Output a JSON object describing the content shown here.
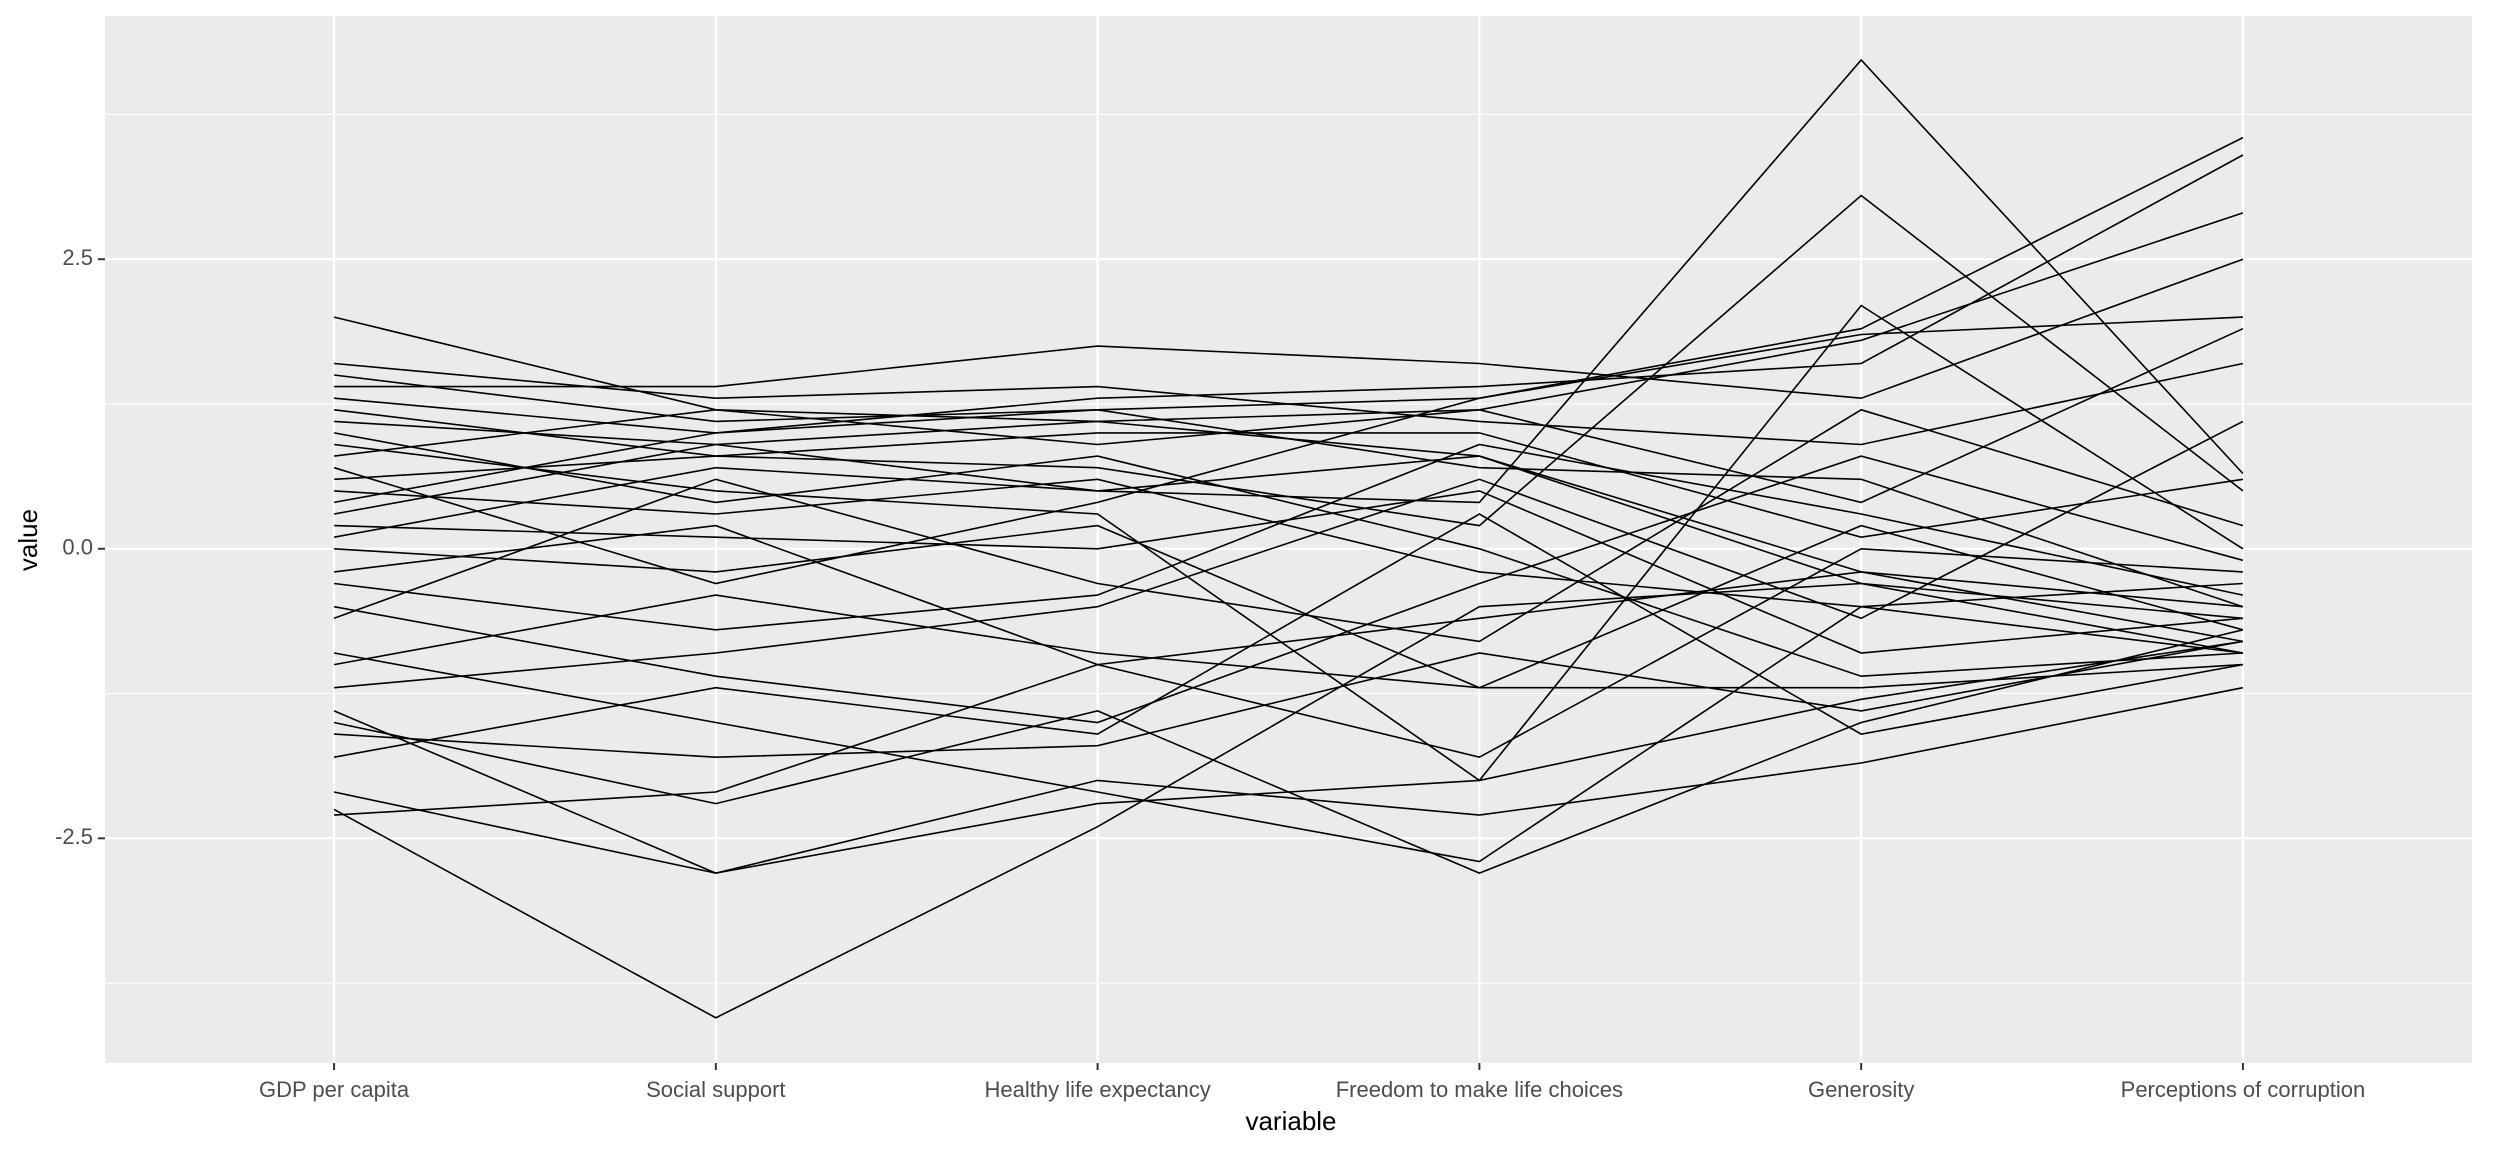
{
  "chart_data": {
    "type": "parallel",
    "x_label": "variable",
    "y_label": "value",
    "categories": [
      "GDP per capita",
      "Social support",
      "Healthy life expectancy",
      "Freedom to make life choices",
      "Generosity",
      "Perceptions of corruption"
    ],
    "ylim": [
      -4.44,
      4.6
    ],
    "yticks": [
      -2.5,
      {
        "value": 0,
        "label": "0.0"
      },
      2.5
    ],
    "minor_yticks": [
      -3.75,
      -1.25,
      1.25,
      3.75
    ],
    "grid": true,
    "color": "#000000",
    "series": [
      {
        "values": [
          -2.25,
          -4.05,
          -2.4,
          -0.5,
          -0.3,
          -0.6
        ]
      },
      {
        "values": [
          0.3,
          0.9,
          0.5,
          0.4,
          4.22,
          0.65
        ]
      },
      {
        "values": [
          0.6,
          0.8,
          0.7,
          0.2,
          3.05,
          0.5
        ]
      },
      {
        "values": [
          1.5,
          1.1,
          1.2,
          1.3,
          1.9,
          3.55
        ]
      },
      {
        "values": [
          1.3,
          1.0,
          1.3,
          1.4,
          1.6,
          3.4
        ]
      },
      {
        "values": [
          2.0,
          1.2,
          1.1,
          1.2,
          1.8,
          2.9
        ]
      },
      {
        "values": [
          1.4,
          1.4,
          1.75,
          1.6,
          1.3,
          2.5
        ]
      },
      {
        "values": [
          -2.1,
          -2.8,
          -2.2,
          -2.0,
          -1.3,
          -0.8
        ]
      },
      {
        "values": [
          -1.5,
          -2.2,
          -1.4,
          -2.8,
          -1.5,
          -0.7
        ]
      },
      {
        "values": [
          -1.4,
          -2.8,
          -2.0,
          -2.3,
          -1.85,
          -1.2
        ]
      },
      {
        "values": [
          -0.9,
          -1.5,
          -2.1,
          -2.7,
          -0.5,
          -0.9
        ]
      },
      {
        "values": [
          0.9,
          0.5,
          0.3,
          -2.0,
          2.1,
          0.0
        ]
      },
      {
        "values": [
          -2.3,
          -2.1,
          -1.0,
          -0.6,
          -0.2,
          -0.5
        ]
      },
      {
        "values": [
          0.2,
          0.1,
          0.0,
          0.5,
          -0.9,
          -0.6
        ]
      },
      {
        "values": [
          -0.3,
          -0.7,
          -0.4,
          0.9,
          0.3,
          -0.4
        ]
      },
      {
        "values": [
          1.1,
          0.9,
          1.1,
          0.8,
          -0.2,
          -0.8
        ]
      },
      {
        "values": [
          1.2,
          0.8,
          1.0,
          1.0,
          0.1,
          0.6
        ]
      },
      {
        "values": [
          -1.0,
          -0.4,
          -0.9,
          -1.2,
          -1.2,
          -1.0
        ]
      },
      {
        "values": [
          0.5,
          0.3,
          0.6,
          -0.2,
          -0.5,
          -0.3
        ]
      },
      {
        "values": [
          -0.5,
          -1.1,
          -1.5,
          -0.3,
          0.8,
          -0.1
        ]
      },
      {
        "values": [
          0.8,
          1.2,
          0.9,
          1.2,
          0.4,
          1.9
        ]
      },
      {
        "values": [
          -1.8,
          -1.2,
          -1.6,
          0.3,
          -1.6,
          -1.0
        ]
      },
      {
        "values": [
          0.0,
          -0.2,
          0.2,
          -1.2,
          0.2,
          -0.7
        ]
      },
      {
        "values": [
          1.0,
          0.4,
          0.8,
          0.0,
          -1.1,
          -0.9
        ]
      },
      {
        "values": [
          -0.6,
          0.6,
          -0.3,
          -0.8,
          1.2,
          0.2
        ]
      },
      {
        "values": [
          0.4,
          1.0,
          1.2,
          0.7,
          0.6,
          -0.5
        ]
      },
      {
        "values": [
          -1.2,
          -0.9,
          -0.5,
          0.6,
          -0.6,
          1.1
        ]
      },
      {
        "values": [
          0.7,
          -0.3,
          0.4,
          1.3,
          1.85,
          2.0
        ]
      },
      {
        "values": [
          -0.2,
          0.2,
          -1.0,
          -1.8,
          0.0,
          -0.2
        ]
      },
      {
        "values": [
          1.6,
          1.3,
          1.4,
          1.1,
          0.9,
          1.6
        ]
      },
      {
        "values": [
          -1.6,
          -1.8,
          -1.7,
          -0.9,
          -1.4,
          -0.8
        ]
      },
      {
        "values": [
          0.1,
          0.7,
          0.5,
          0.8,
          -0.3,
          -0.9
        ]
      }
    ]
  }
}
